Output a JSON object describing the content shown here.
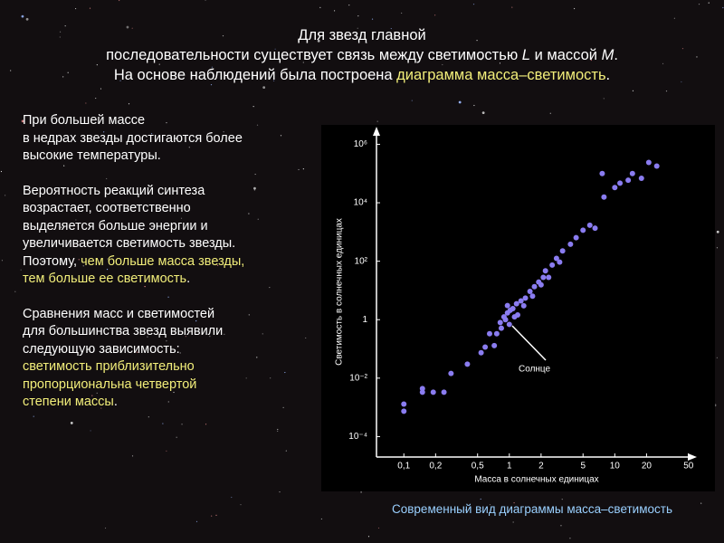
{
  "slide": {
    "title_lines": [
      [
        {
          "text": "Для звезд главной"
        }
      ],
      [
        {
          "text": "последовательности существует связь между светимостью "
        },
        {
          "text": "L",
          "italic": true
        },
        {
          "text": " и массой "
        },
        {
          "text": "M",
          "italic": true
        },
        {
          "text": "."
        }
      ],
      [
        {
          "text": "На основе наблюдений была построена "
        },
        {
          "text": "диаграмма масса–светимость",
          "emphasis": true
        },
        {
          "text": "."
        }
      ]
    ],
    "paragraphs": [
      [
        [
          {
            "text": "При большей массе"
          }
        ],
        [
          {
            "text": "в недрах звезды достигаются более"
          }
        ],
        [
          {
            "text": "высокие температуры."
          }
        ]
      ],
      [
        [
          {
            "text": "Вероятность реакций синтеза"
          }
        ],
        [
          {
            "text": "возрастает, соответственно"
          }
        ],
        [
          {
            "text": "выделяется больше энергии и"
          }
        ],
        [
          {
            "text": "увеличивается светимость звезды."
          }
        ],
        [
          {
            "text": "Поэтому, "
          },
          {
            "text": "чем больше масса звезды,",
            "emphasis": true
          }
        ],
        [
          {
            "text": "тем больше ее светимость",
            "emphasis": true
          },
          {
            "text": "."
          }
        ]
      ],
      [
        [
          {
            "text": "Сравнения масс и светимостей"
          }
        ],
        [
          {
            "text": "для большинства звезд выявили"
          }
        ],
        [
          {
            "text": "следующую зависимость:"
          }
        ],
        [
          {
            "text": "светимость приблизительно",
            "emphasis": true
          }
        ],
        [
          {
            "text": "пропорциональна четвертой",
            "emphasis": true
          }
        ],
        [
          {
            "text": "степени массы",
            "emphasis": true
          },
          {
            "text": "."
          }
        ]
      ]
    ],
    "caption": "Современный вид диаграммы масса–светимость"
  },
  "chart_data": {
    "type": "scatter",
    "xlabel": "Масса в солнечных единицах",
    "ylabel": "Светимость в солнечных единицах",
    "annotation": "Солнце",
    "color": "#8a7cf0",
    "xscale": "log",
    "yscale": "log",
    "xlim": [
      0.055,
      60
    ],
    "ylim": [
      2e-05,
      4000000
    ],
    "xticks": [
      {
        "value": 0.1,
        "label": "0,1"
      },
      {
        "value": 0.2,
        "label": "0,2"
      },
      {
        "value": 0.5,
        "label": "0,5"
      },
      1,
      2,
      5,
      10,
      20,
      50
    ],
    "yticks": [
      {
        "value": 0.0001,
        "label": "10⁻⁴"
      },
      {
        "value": 0.01,
        "label": "10⁻²"
      },
      1,
      {
        "value": 100,
        "label": "10²"
      },
      {
        "value": 10000,
        "label": "10⁴"
      },
      {
        "value": 1000000,
        "label": "10⁶"
      }
    ],
    "x": [
      0.1,
      0.1,
      0.15,
      0.15,
      0.19,
      0.24,
      0.28,
      0.4,
      0.54,
      0.59,
      0.72,
      0.76,
      0.82,
      0.89,
      0.96,
      1.02,
      1.08,
      1.17,
      1.2,
      1.29,
      1.42,
      1.57,
      1.73,
      1.9,
      2.1,
      2.2,
      2.55,
      2.8,
      3.2,
      3.8,
      4.3,
      5.0,
      5.8,
      6.5,
      7.9,
      10,
      11.2,
      13.4,
      14.7,
      17.9,
      21,
      25,
      7.6,
      0.92,
      1,
      1.12,
      1.37,
      1.66,
      2.0,
      2.36,
      3,
      0.96,
      0.84,
      0.65
    ],
    "y": [
      0.00074,
      0.0013,
      0.0033,
      0.0044,
      0.0033,
      0.0033,
      0.0145,
      0.03,
      0.074,
      0.116,
      0.13,
      0.33,
      0.8,
      1.25,
      1.7,
      2.1,
      2.4,
      3.5,
      1.45,
      4.4,
      5.5,
      9.3,
      13.5,
      19.5,
      28,
      47,
      74,
      125,
      225,
      380,
      640,
      1150,
      1700,
      1350,
      15700,
      33000,
      47000,
      59000,
      100000,
      69000,
      240000,
      180000,
      100000,
      1,
      0.69,
      1.25,
      3,
      6.4,
      15.6,
      28,
      93,
      3.05,
      0.51,
      0.33
    ]
  }
}
